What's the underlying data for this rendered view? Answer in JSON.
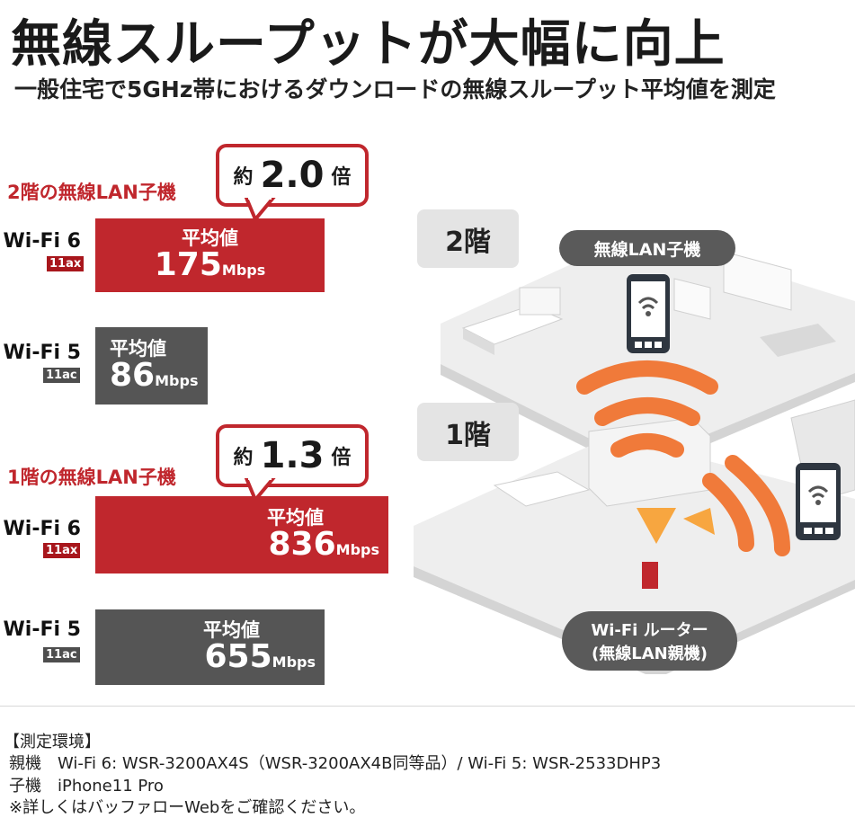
{
  "header": {
    "title": "無線スループットが大幅に向上",
    "subtitle": "一般住宅で5GHz帯におけるダウンロードの無線スループット平均値を測定"
  },
  "chart_data": [
    {
      "type": "bar",
      "group_label": "2階の無線LAN子機",
      "callout": {
        "prefix": "約",
        "value": "2.0",
        "suffix": "倍"
      },
      "unit": "Mbps",
      "series": [
        {
          "name": "Wi-Fi 6",
          "tag": "11ax",
          "label": "平均値",
          "value": 175,
          "color": "#c0272d"
        },
        {
          "name": "Wi-Fi 5",
          "tag": "11ac",
          "label": "平均値",
          "value": 86,
          "color": "#555555"
        }
      ]
    },
    {
      "type": "bar",
      "group_label": "1階の無線LAN子機",
      "callout": {
        "prefix": "約",
        "value": "1.3",
        "suffix": "倍"
      },
      "unit": "Mbps",
      "series": [
        {
          "name": "Wi-Fi 6",
          "tag": "11ax",
          "label": "平均値",
          "value": 836,
          "color": "#c0272d"
        },
        {
          "name": "Wi-Fi 5",
          "tag": "11ac",
          "label": "平均値",
          "value": 655,
          "color": "#555555"
        }
      ]
    }
  ],
  "illustration": {
    "floor2_label": "2階",
    "floor1_label": "1階",
    "client_label": "無線LAN子機",
    "router_label_line1": "Wi-Fi ルーター",
    "router_label_line2": "(無線LAN親機)",
    "signal_color": "#f07a3a",
    "router_color": "#c0272d"
  },
  "footer": {
    "heading": "【測定環境】",
    "line1": "親機　Wi-Fi 6: WSR-3200AX4S（WSR-3200AX4B同等品）/ Wi-Fi 5: WSR-2533DHP3",
    "line2": "子機　iPhone11 Pro",
    "line3": "※詳しくはバッファローWebをご確認ください。"
  }
}
